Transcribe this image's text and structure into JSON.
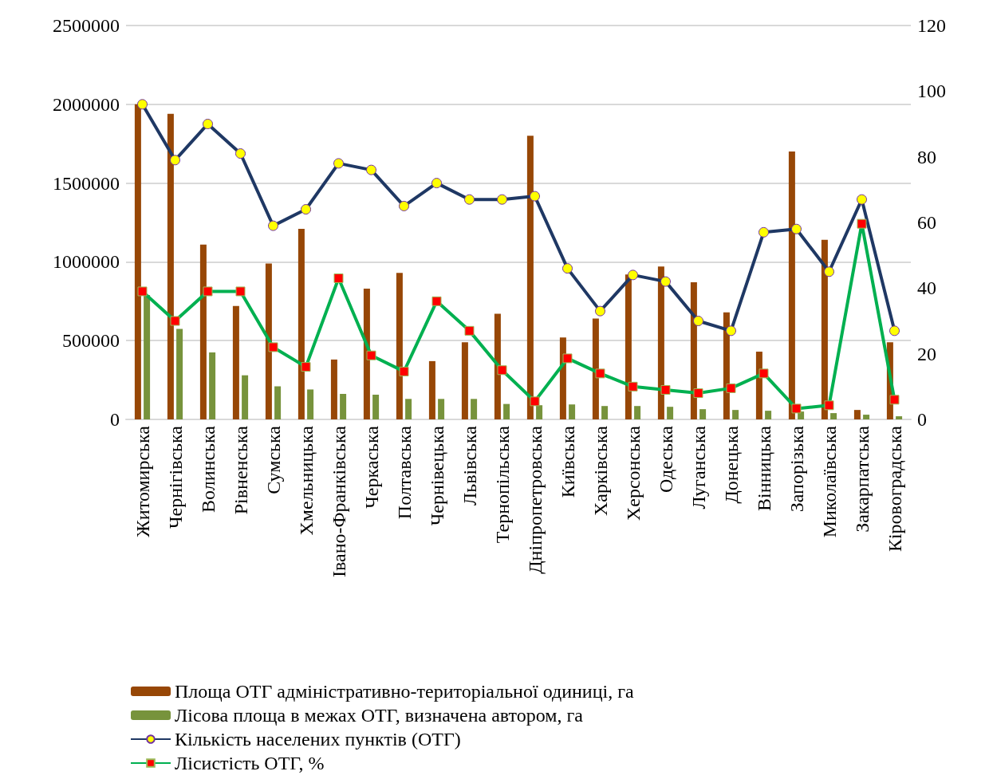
{
  "chart_data": {
    "type": "bar",
    "categories": [
      "Житомирська",
      "Чернігівська",
      "Волинська",
      "Рівненська",
      "Сумська",
      "Хмельницька",
      "Івано-Франківська",
      "Черкаська",
      "Полтавська",
      "Чернівецька",
      "Львівська",
      "Тернопільська",
      "Дніпропетровська",
      "Київська",
      "Харківська",
      "Херсонська",
      "Одеська",
      "Луганська",
      "Донецька",
      "Вінницька",
      "Запорізька",
      "Миколаївська",
      "Закарпатська",
      "Кіровоградська"
    ],
    "series": [
      {
        "name": "Площа ОТГ адміністративно-територіальної одиниці, га",
        "color": "#974706",
        "values": [
          2000000,
          1940000,
          1110000,
          720000,
          990000,
          1210000,
          380000,
          830000,
          930000,
          370000,
          490000,
          670000,
          1800000,
          520000,
          640000,
          920000,
          970000,
          870000,
          680000,
          430000,
          1700000,
          1140000,
          60000,
          490000
        ]
      },
      {
        "name": "Лісова площа в межах ОТГ, визначена автором, га",
        "color": "#77933c",
        "values": [
          790000,
          575000,
          425000,
          280000,
          210000,
          190000,
          162000,
          157000,
          130000,
          130000,
          130000,
          98000,
          90000,
          95000,
          85000,
          85000,
          80000,
          65000,
          60000,
          55000,
          50000,
          40000,
          30000,
          20000
        ]
      },
      {
        "name": "Кількість населених пунктів (ОТГ)",
        "type": "line",
        "axis": "y2",
        "color": "#1f3864",
        "marker": "circle",
        "values": [
          96,
          79,
          90,
          81,
          59,
          64,
          78,
          76,
          65,
          72,
          67,
          67,
          68,
          46,
          33,
          44,
          42,
          30,
          27,
          57,
          58,
          45,
          67,
          27
        ]
      },
      {
        "name": "Лісистість ОТГ, %",
        "type": "line",
        "axis": "y2",
        "color": "#00b050",
        "marker": "square",
        "values": [
          39,
          30,
          39,
          39,
          22,
          16,
          43,
          19.5,
          14.6,
          36,
          27,
          15,
          5.5,
          18.6,
          14,
          10,
          9,
          8,
          9.5,
          14,
          3.3,
          4.3,
          59.6,
          6
        ]
      }
    ],
    "ylim": [
      0,
      2500000
    ],
    "yticks": [
      0,
      500000,
      1000000,
      1500000,
      2000000,
      2500000
    ],
    "y2lim": [
      0,
      120
    ],
    "y2ticks": [
      0,
      20,
      40,
      60,
      80,
      100,
      120
    ],
    "grid": "y",
    "legend": "bottom"
  }
}
